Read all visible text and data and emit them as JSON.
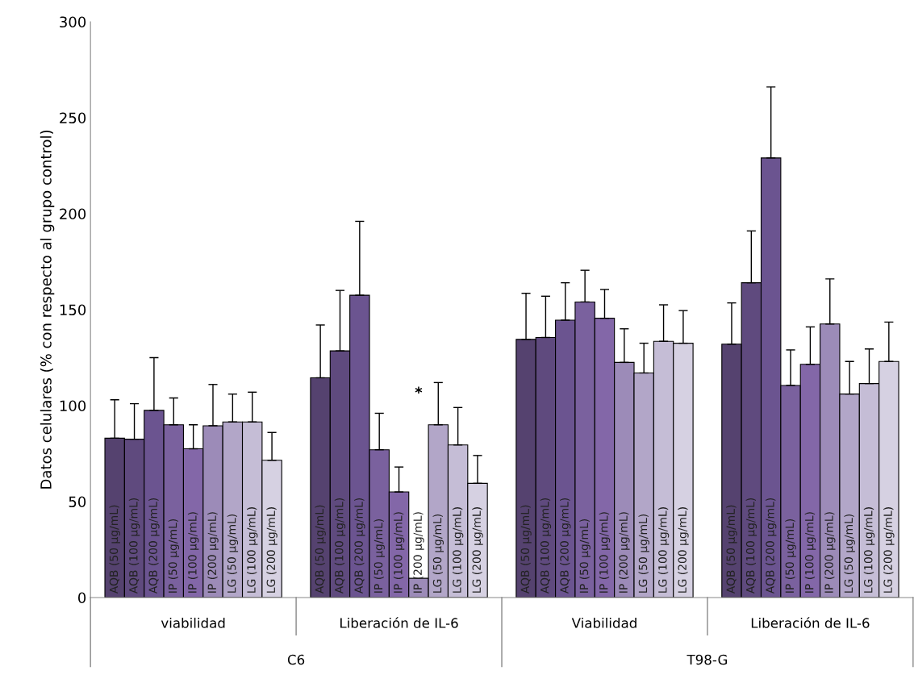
{
  "chart_data": {
    "type": "bar",
    "ylabel": "Datos celulares (% con respecto al grupo control)",
    "categories": [
      "viabilidad",
      "Liberación de IL-6",
      "Viabilidad",
      "Liberación de IL-6"
    ],
    "annotations": [
      "C6",
      "T98-G",
      "*"
    ],
    "ylim": [
      0,
      300
    ],
    "yticks": [
      0,
      50,
      100,
      150,
      200,
      250,
      300
    ],
    "grid": false,
    "legend": false,
    "series": [
      {
        "name": "AQB (50 µg/mL)",
        "color": "#55426f",
        "values": [
          83,
          114.5,
          134.5,
          132
        ],
        "errors": [
          [
            83,
            103
          ],
          [
            114.5,
            142
          ],
          [
            134.5,
            158.5
          ],
          [
            132,
            153.5
          ]
        ]
      },
      {
        "name": "AQB (100 µg/mL)",
        "color": "#5f4a7e",
        "values": [
          82.5,
          128.5,
          135.5,
          164
        ],
        "errors": [
          [
            82.5,
            101
          ],
          [
            128.5,
            160
          ],
          [
            135.5,
            157
          ],
          [
            164,
            191
          ]
        ]
      },
      {
        "name": "AQB (200 µg/mL)",
        "color": "#6b5490",
        "values": [
          97.5,
          157.5,
          144.5,
          229
        ],
        "errors": [
          [
            97.5,
            125
          ],
          [
            157.5,
            196
          ],
          [
            144.5,
            164
          ],
          [
            229,
            266
          ]
        ]
      },
      {
        "name": "IP (50 µg/mL)",
        "color": "#7a619e",
        "values": [
          90,
          77,
          154,
          110.5
        ],
        "errors": [
          [
            90,
            104
          ],
          [
            77,
            96
          ],
          [
            154,
            170.5
          ],
          [
            110.5,
            129
          ]
        ]
      },
      {
        "name": "IP (100 µg/mL)",
        "color": "#8367a8",
        "values": [
          77.5,
          55,
          145.5,
          121.5
        ],
        "errors": [
          [
            77.5,
            90
          ],
          [
            55,
            68
          ],
          [
            145.5,
            160.5
          ],
          [
            121.5,
            141
          ]
        ]
      },
      {
        "name": "IP (200 µg/mL)",
        "color": "#9c8bb8",
        "values": [
          89.5,
          10,
          122.5,
          142.5
        ],
        "errors": [
          [
            89.5,
            111
          ],
          null,
          [
            122.5,
            140
          ],
          [
            142.5,
            166
          ]
        ]
      },
      {
        "name": "LG (50 µg/mL)",
        "color": "#b2a6c8",
        "values": [
          91.5,
          90,
          117,
          106
        ],
        "errors": [
          [
            91.5,
            106
          ],
          [
            90,
            112
          ],
          [
            117,
            132.5
          ],
          [
            106,
            123
          ]
        ]
      },
      {
        "name": "LG (100 µg/mL)",
        "color": "#c5bdd6",
        "values": [
          91.5,
          79.5,
          133.5,
          111.5
        ],
        "errors": [
          [
            91.5,
            107
          ],
          [
            79.5,
            99
          ],
          [
            133.5,
            152.5
          ],
          [
            111.5,
            129.5
          ]
        ]
      },
      {
        "name": "LG (200 µg/mL)",
        "color": "#d6d1e2",
        "values": [
          71.5,
          59.5,
          132.5,
          123
        ],
        "errors": [
          [
            71.5,
            86
          ],
          [
            59.5,
            74
          ],
          [
            132.5,
            149.5
          ],
          [
            123,
            143.5
          ]
        ]
      }
    ]
  }
}
